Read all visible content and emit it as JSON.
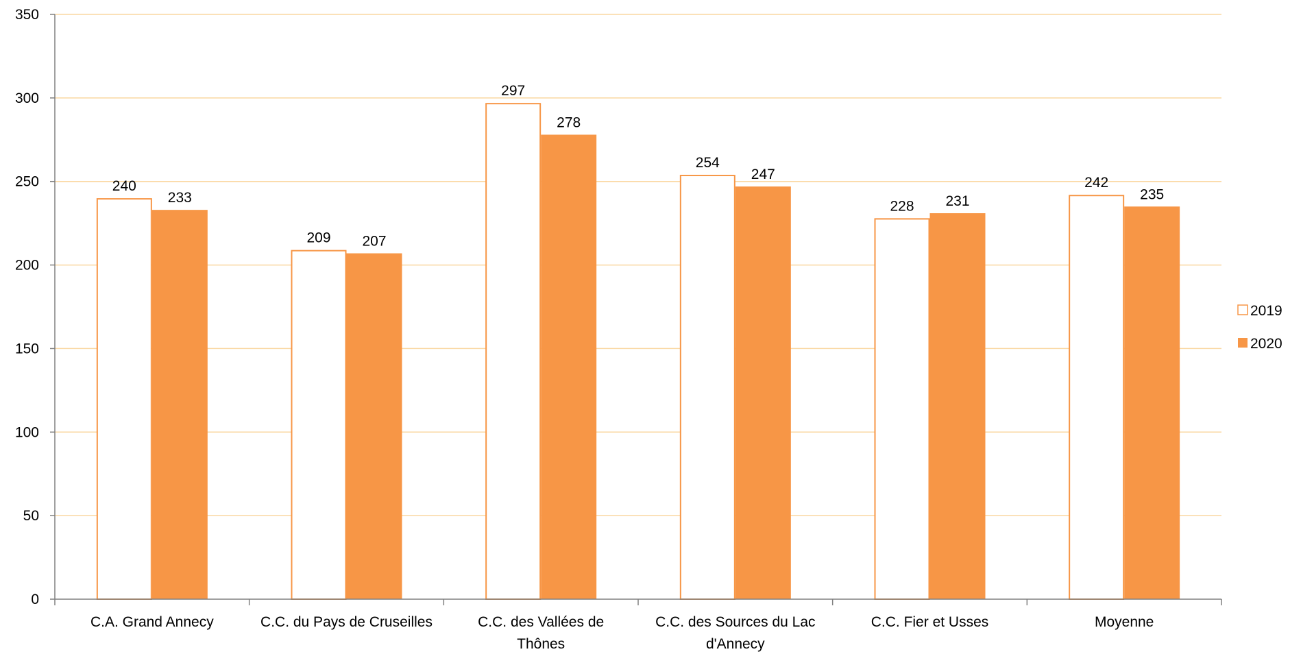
{
  "chart_data": {
    "type": "bar",
    "categories": [
      [
        "C.A. Grand Annecy"
      ],
      [
        "C.C. du Pays de Cruseilles"
      ],
      [
        "C.C. des Vallées de",
        "Thônes"
      ],
      [
        "C.C. des Sources du Lac",
        "d'Annecy"
      ],
      [
        "C.C. Fier et Usses"
      ],
      [
        "Moyenne"
      ]
    ],
    "series": [
      {
        "name": "2019",
        "values": [
          240,
          209,
          297,
          254,
          228,
          242
        ],
        "style": "outline",
        "color": "#f79646"
      },
      {
        "name": "2020",
        "values": [
          233,
          207,
          278,
          247,
          231,
          235
        ],
        "style": "filled",
        "color": "#f79646"
      }
    ],
    "ylim": [
      0,
      350
    ],
    "yticks": [
      0,
      50,
      100,
      150,
      200,
      250,
      300,
      350
    ],
    "grid": true,
    "grid_color": "#fad7a0",
    "axis_color": "#808080",
    "legend_position": "right",
    "title": "",
    "xlabel": "",
    "ylabel": ""
  }
}
